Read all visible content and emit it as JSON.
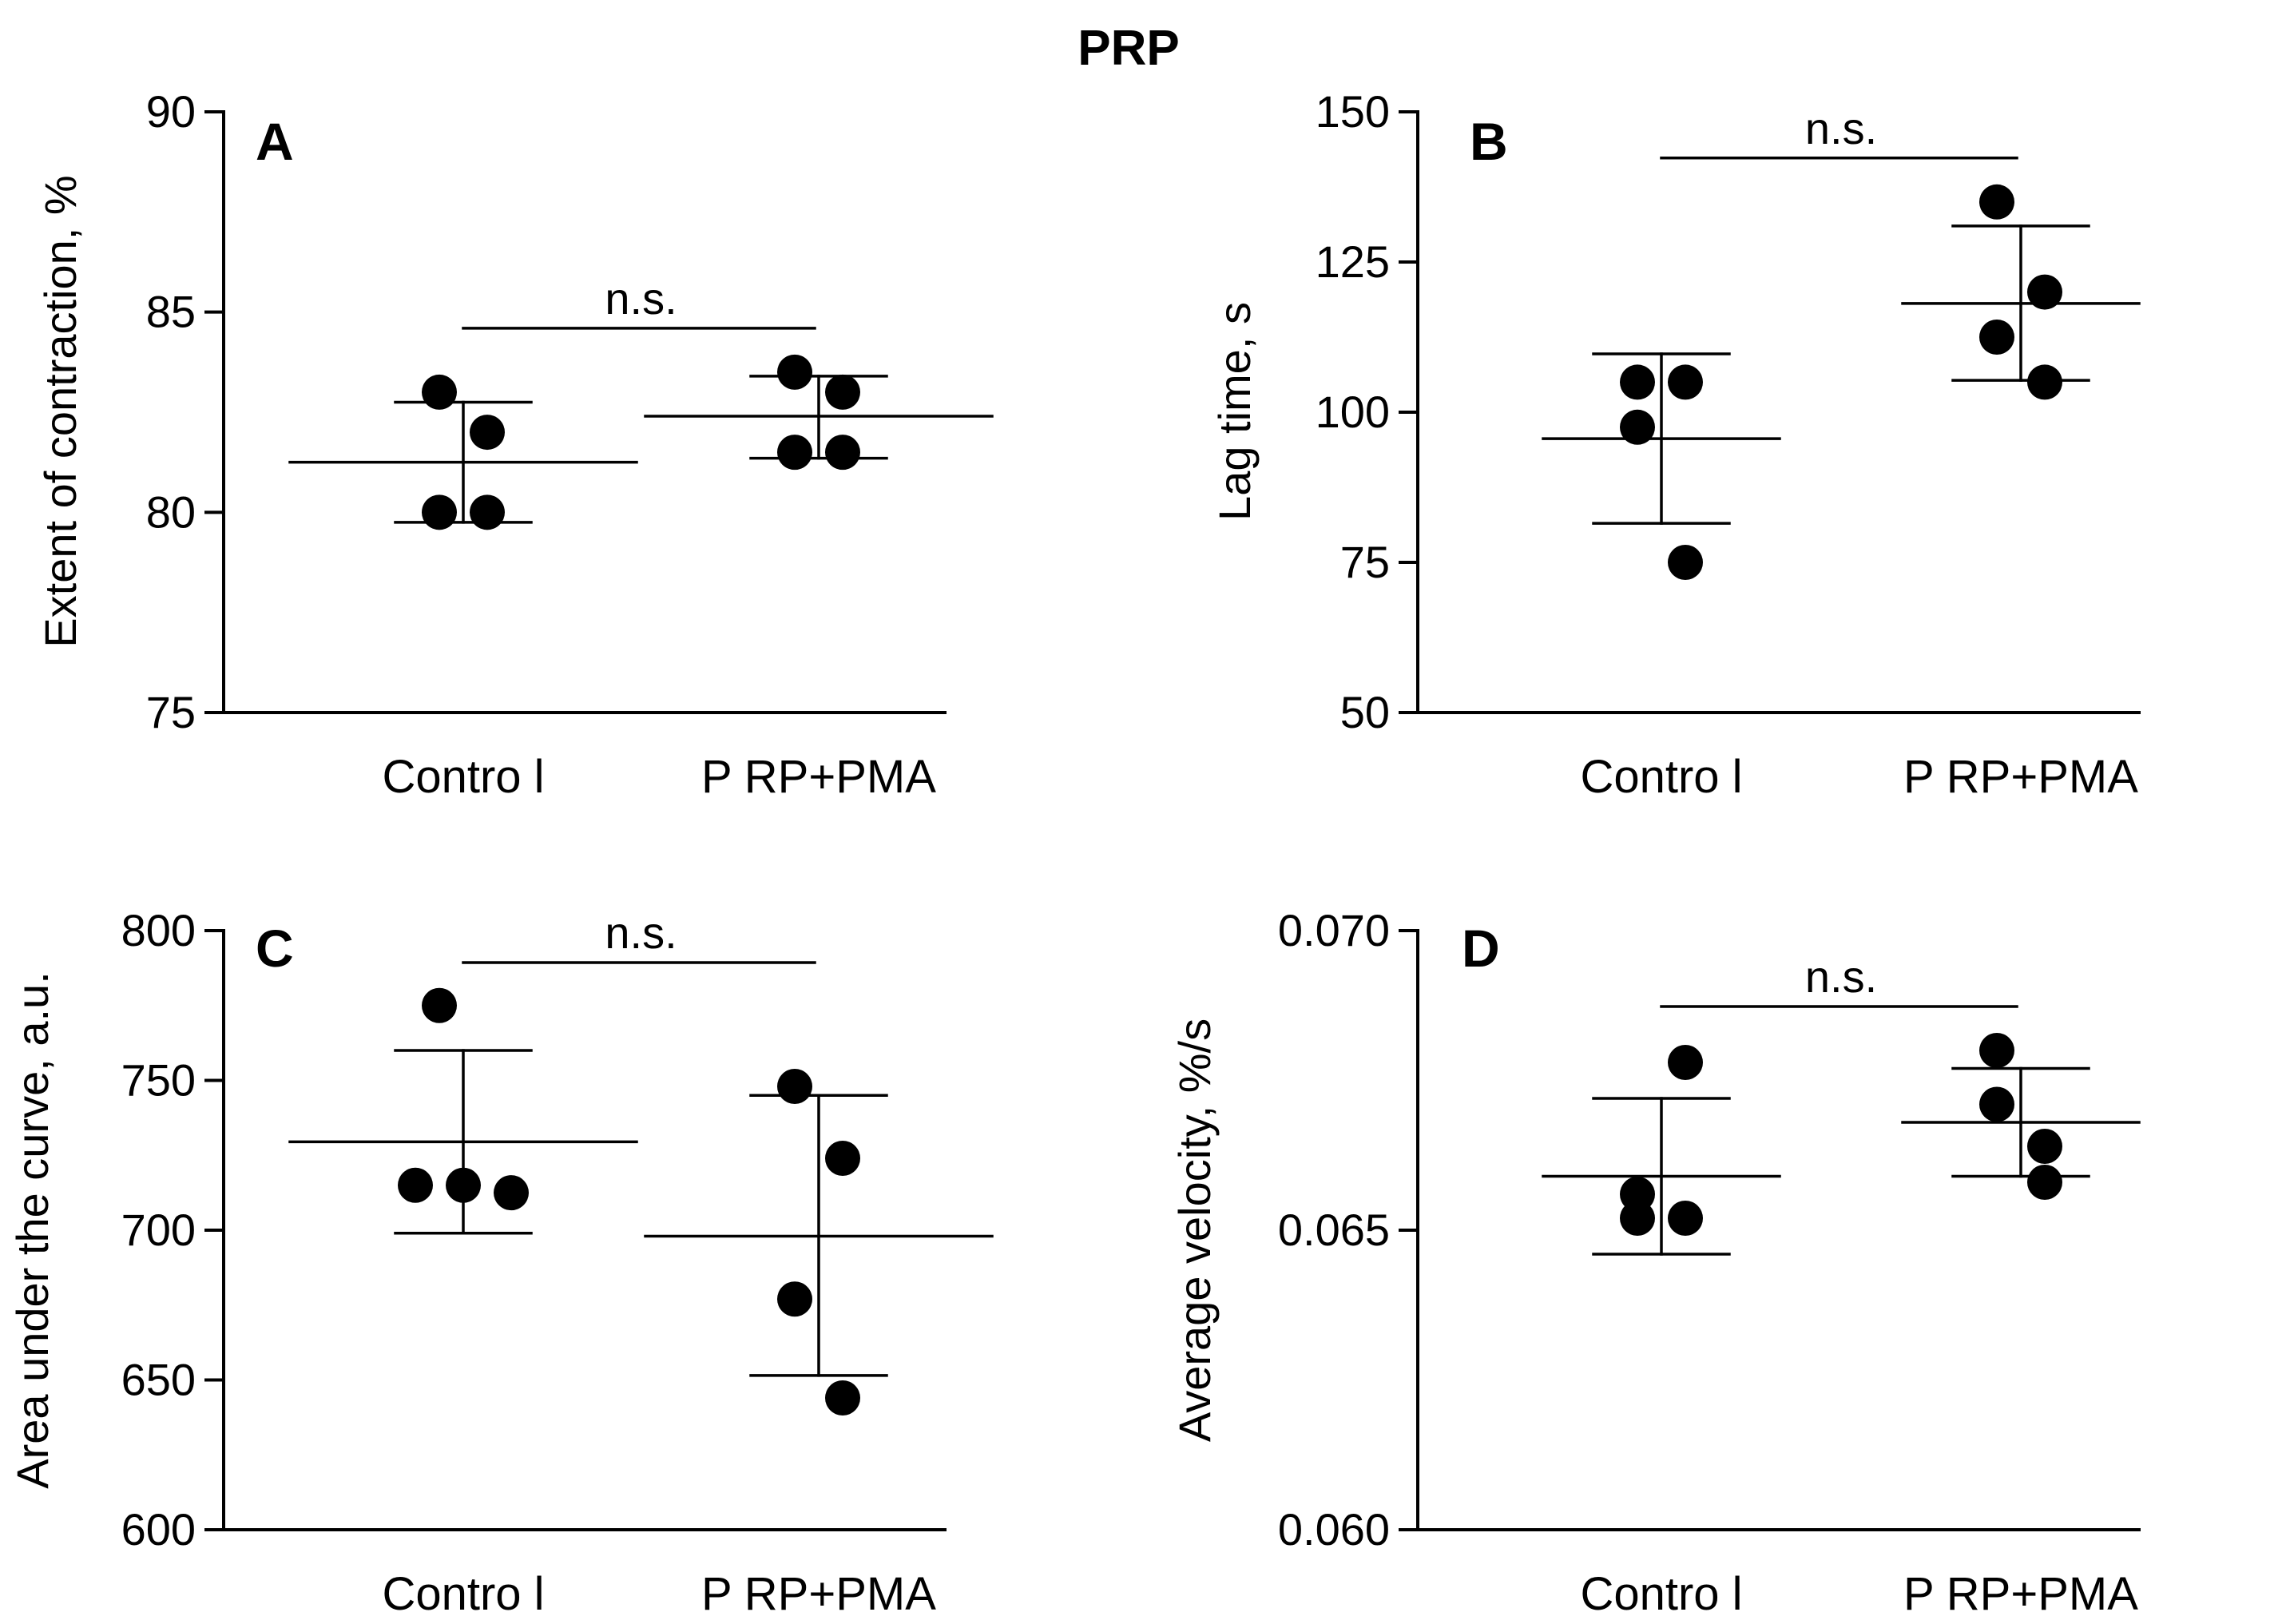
{
  "figure": {
    "title": "PRP"
  },
  "chart_data": [
    {
      "type": "scatter",
      "panel": "A",
      "ylabel": "Extent of contraction,  %",
      "ylim": [
        75,
        90
      ],
      "yticks": [
        75,
        80,
        85,
        90
      ],
      "ytick_labels": [
        "75",
        "80",
        "85",
        "90"
      ],
      "categories": [
        "Contro l",
        "P RP+PMA"
      ],
      "significance": "n.s.",
      "groups": [
        {
          "name": "Control",
          "points": [
            83.0,
            82.0,
            80.0,
            80.0
          ],
          "mean": 81.25,
          "sd_upper": 82.75,
          "sd_lower": 79.75
        },
        {
          "name": "PRP+PMA",
          "points": [
            83.5,
            83.0,
            81.5,
            81.5
          ],
          "mean": 82.4,
          "sd_upper": 83.4,
          "sd_lower": 81.35
        }
      ]
    },
    {
      "type": "scatter",
      "panel": "B",
      "ylabel": "Lag time, s",
      "ylim": [
        50,
        150
      ],
      "yticks": [
        50,
        75,
        100,
        125,
        150
      ],
      "ytick_labels": [
        "50",
        "75",
        "100",
        "125",
        "150"
      ],
      "categories": [
        "Contro l",
        "P RP+PMA"
      ],
      "significance": "n.s.",
      "groups": [
        {
          "name": "Control",
          "points": [
            105,
            105,
            97.5,
            75
          ],
          "mean": 95.6,
          "sd_upper": 109.7,
          "sd_lower": 81.5
        },
        {
          "name": "PRP+PMA",
          "points": [
            135,
            120,
            112.5,
            105
          ],
          "mean": 118.1,
          "sd_upper": 131.0,
          "sd_lower": 105.3
        }
      ]
    },
    {
      "type": "scatter",
      "panel": "C",
      "ylabel": "Area under the curve, a.u.",
      "ylim": [
        600,
        800
      ],
      "yticks": [
        600,
        650,
        700,
        750,
        800
      ],
      "ytick_labels": [
        "600",
        "650",
        "700",
        "750",
        "800"
      ],
      "categories": [
        "Contro l",
        "P RP+PMA"
      ],
      "significance": "n.s.",
      "groups": [
        {
          "name": "Control",
          "points": [
            775,
            715,
            715,
            712.5
          ],
          "mean": 729.5,
          "sd_upper": 760,
          "sd_lower": 699
        },
        {
          "name": "PRP+PMA",
          "points": [
            748,
            724,
            677,
            644
          ],
          "mean": 698,
          "sd_upper": 745,
          "sd_lower": 651.5
        }
      ]
    },
    {
      "type": "scatter",
      "panel": "D",
      "ylabel": "Average velocity,  %/s",
      "ylim": [
        0.06,
        0.07
      ],
      "yticks": [
        0.06,
        0.065,
        0.07
      ],
      "ytick_labels": [
        "0.060",
        "0.065",
        "0.070"
      ],
      "categories": [
        "Contro l",
        "P RP+PMA"
      ],
      "significance": "n.s.",
      "groups": [
        {
          "name": "Control",
          "points": [
            0.0656,
            0.0678,
            0.0652,
            0.0652
          ],
          "mean": 0.0659,
          "sd_upper": 0.0672,
          "sd_lower": 0.0646
        },
        {
          "name": "PRP+PMA",
          "points": [
            0.068,
            0.0664,
            0.0671,
            0.0658
          ],
          "mean": 0.0668,
          "sd_upper": 0.0677,
          "sd_lower": 0.0659
        }
      ]
    }
  ]
}
